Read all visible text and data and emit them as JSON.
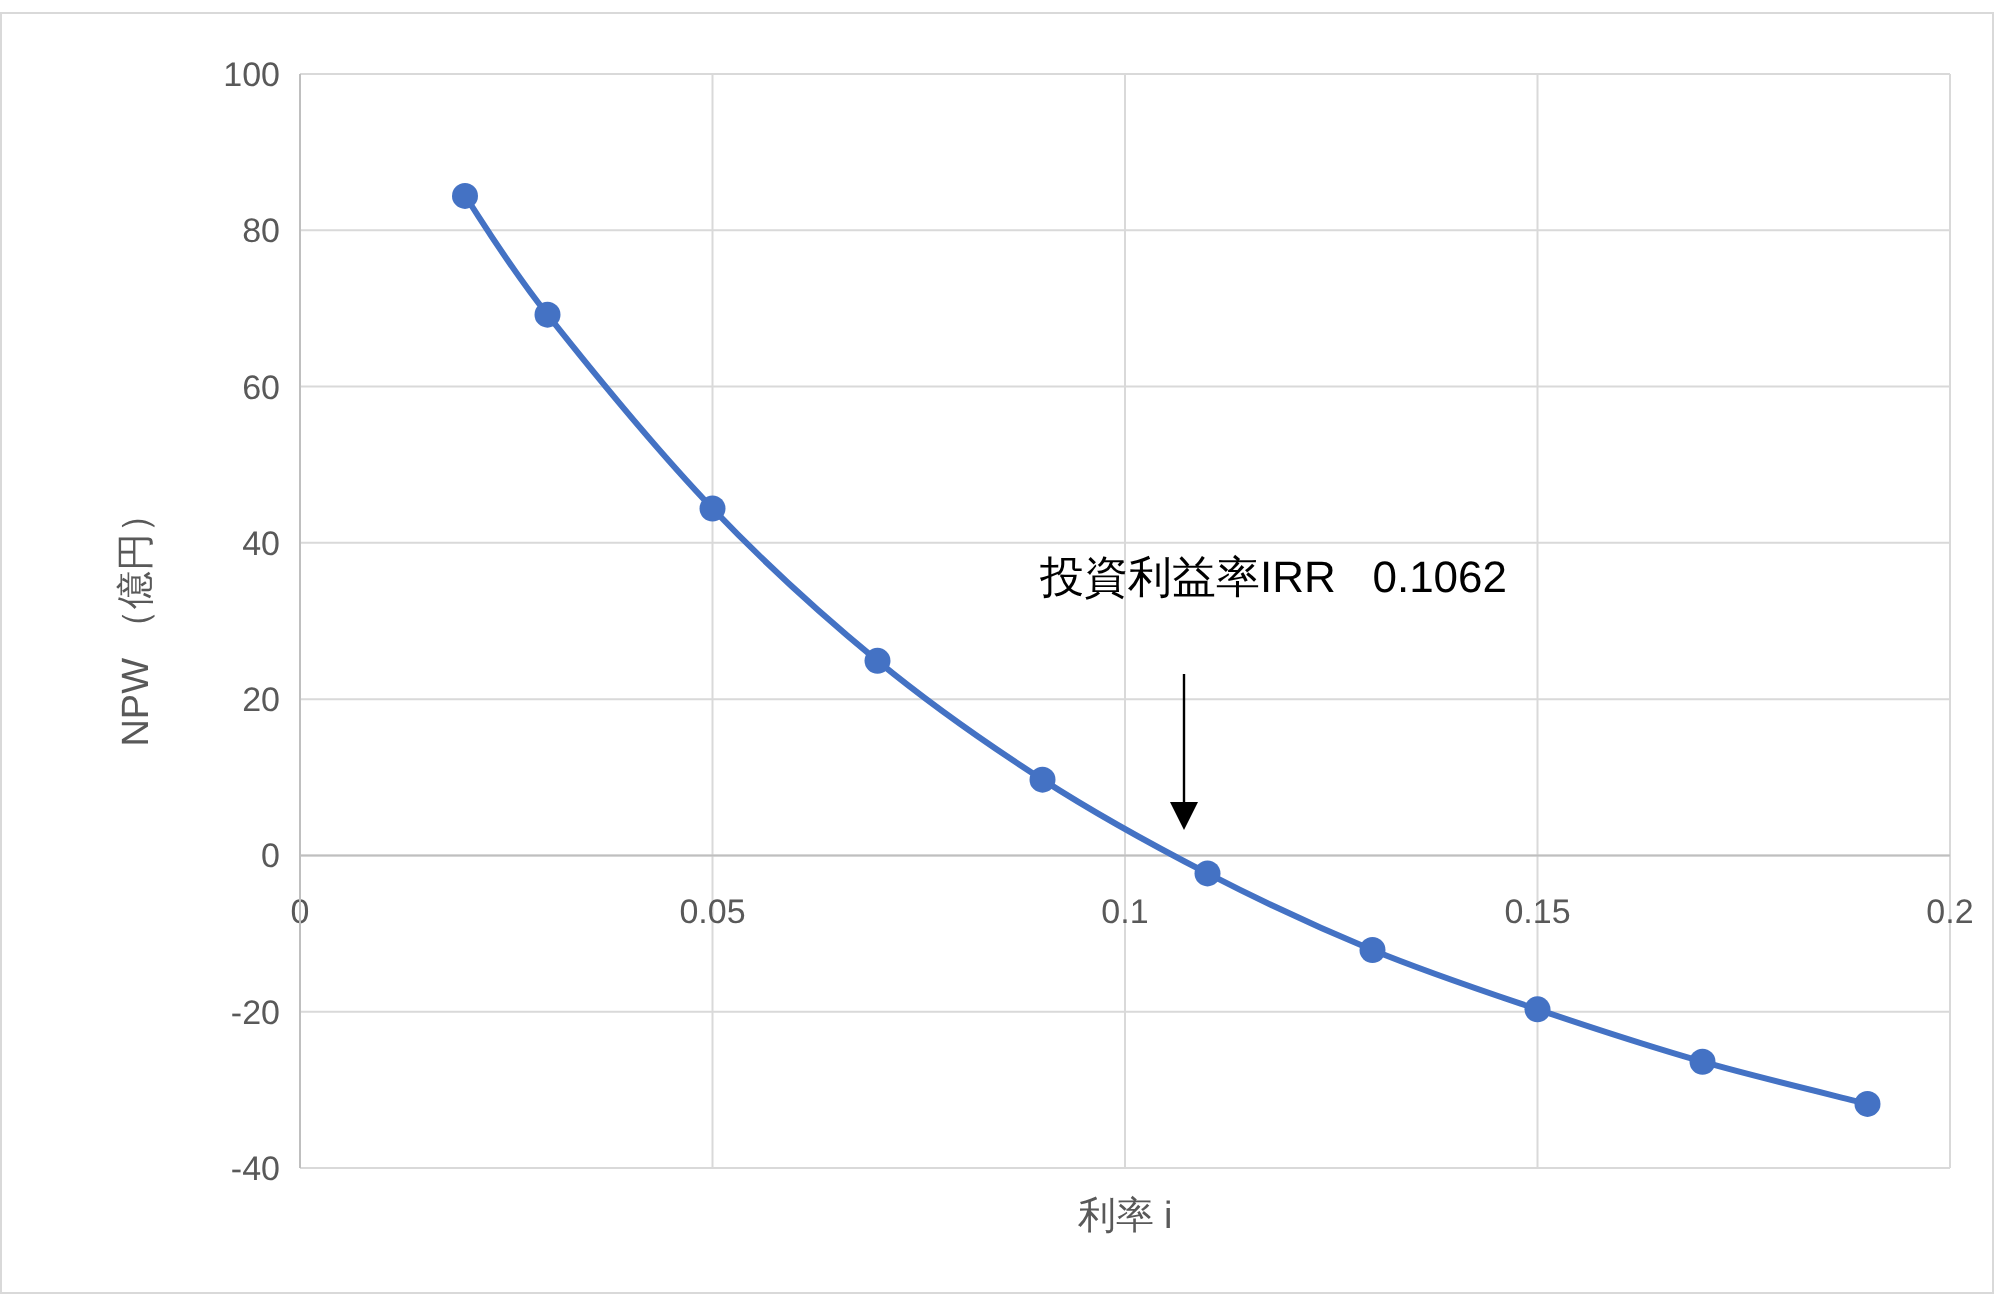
{
  "chart_data": {
    "type": "line",
    "xlabel": "利率 i",
    "ylabel": "NPW （億円）",
    "x": [
      0.02,
      0.03,
      0.05,
      0.07,
      0.09,
      0.11,
      0.13,
      0.15,
      0.17,
      0.19
    ],
    "series": [
      {
        "color": "#4472c4",
        "values": [
          84.4,
          69.2,
          44.4,
          24.9,
          9.7,
          -2.3,
          -12.1,
          -19.7,
          -26.4,
          -31.8
        ]
      }
    ],
    "xlim": [
      0,
      0.2
    ],
    "xticks": [
      0,
      0.05,
      0.1,
      0.15,
      0.2
    ],
    "ylim": [
      -40,
      100
    ],
    "yticks": [
      -40,
      -20,
      0,
      20,
      40,
      60,
      80,
      100
    ],
    "grid": true,
    "marker": "circle",
    "line_style": "solid",
    "annotations": [
      "投資利益率IRR   0.1062"
    ]
  }
}
